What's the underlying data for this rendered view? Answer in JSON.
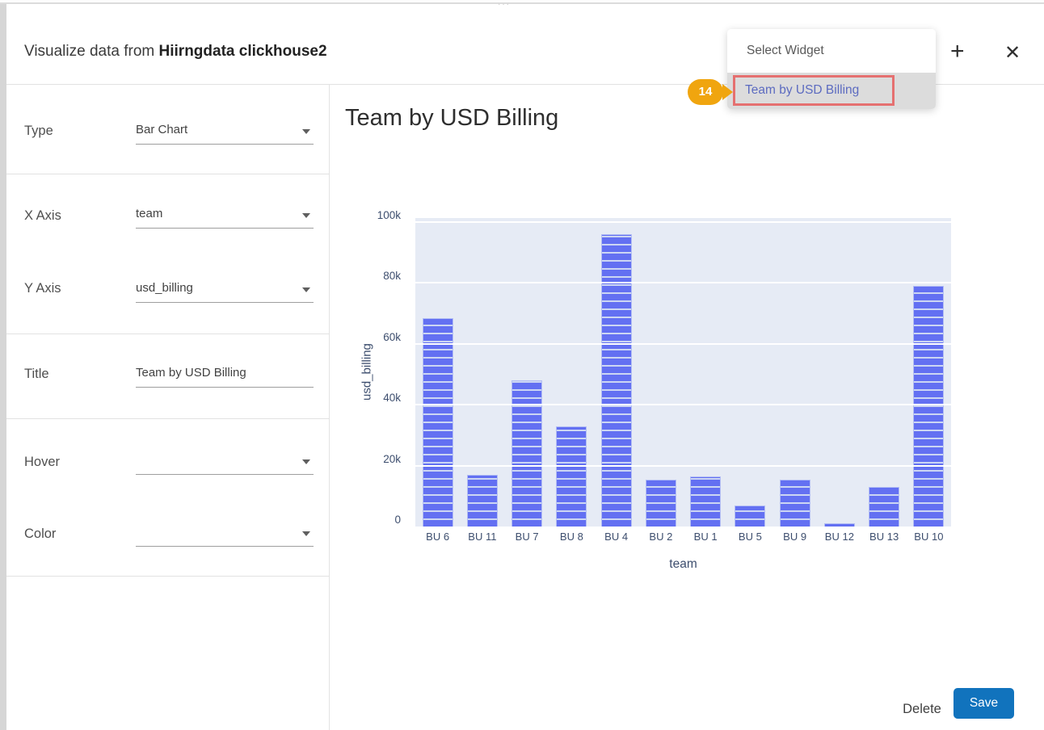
{
  "page": {
    "top_ellipsis": "..."
  },
  "modal": {
    "title_prefix": "Visualize data from ",
    "title_dataset": "Hiirngdata clickhouse2",
    "add_icon": "+",
    "close_icon": "✕"
  },
  "widget_dropdown": {
    "header": "Select Widget",
    "selected_item": "Team by USD Billing",
    "annotation_badge": "14"
  },
  "form": {
    "fields": [
      {
        "label": "Type",
        "value": "Bar Chart",
        "control": "select"
      },
      {
        "label": "X Axis",
        "value": "team",
        "control": "select"
      },
      {
        "label": "Y Axis",
        "value": "usd_billing",
        "control": "select"
      },
      {
        "label": "Title",
        "value": "Team by USD Billing",
        "control": "input"
      },
      {
        "label": "Hover",
        "value": "",
        "control": "select"
      },
      {
        "label": "Color",
        "value": "",
        "control": "select"
      }
    ]
  },
  "preview": {
    "title": "Team by USD Billing"
  },
  "chart_data": {
    "type": "bar",
    "title": "Team by USD Billing",
    "xlabel": "team",
    "ylabel": "usd_billing",
    "categories": [
      "BU 6",
      "BU 11",
      "BU 7",
      "BU 8",
      "BU 4",
      "BU 2",
      "BU 1",
      "BU 5",
      "BU 9",
      "BU 12",
      "BU 13",
      "BU 10"
    ],
    "values": [
      68500,
      17000,
      48000,
      33000,
      96000,
      15500,
      16500,
      7000,
      15500,
      1000,
      13000,
      79000
    ],
    "ylim": [
      0,
      100000
    ],
    "yticks": [
      {
        "label": "0",
        "value": 0
      },
      {
        "label": "20k",
        "value": 20000
      },
      {
        "label": "40k",
        "value": 40000
      },
      {
        "label": "60k",
        "value": 60000
      },
      {
        "label": "80k",
        "value": 80000
      },
      {
        "label": "100k",
        "value": 100000
      }
    ],
    "grid": true,
    "legend_position": "none",
    "stacked_segments": true
  },
  "footer": {
    "delete_label": "Delete",
    "save_label": "Save"
  },
  "colors": {
    "bar-color": "#6370f2",
    "bar-stripe": "#ccd6f3",
    "plot-bg": "#e6ebf5",
    "save-blue": "#1173bd",
    "badge-orange": "#f0a50f",
    "highlight-red": "#e57070",
    "item-text": "#5c6bc0"
  }
}
